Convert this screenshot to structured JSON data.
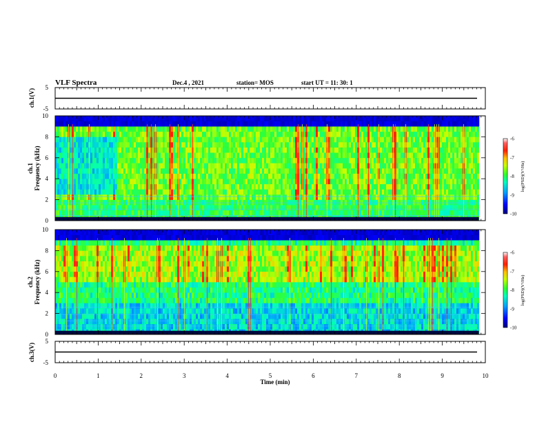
{
  "header": {
    "title": "VLF Spectra",
    "date": "Dec.4 , 2021",
    "station": "station= MOS",
    "start_ut": "start UT =  11: 30: 1"
  },
  "chart_data": [
    {
      "id": "ch1-waveform",
      "type": "line",
      "ylabel": "ch.1(V)",
      "yticks": [
        "5",
        "-5"
      ],
      "ylim": [
        -5,
        5
      ],
      "xlim": [
        0,
        10
      ],
      "trace_level": 0
    },
    {
      "id": "ch1-spectrogram",
      "type": "heatmap",
      "ylabel_top": "ch.1",
      "ylabel": "Frequency (kHz)",
      "yticks": [
        "0",
        "2",
        "4",
        "6",
        "8",
        "10"
      ],
      "ylim": [
        0,
        10
      ],
      "xlim": [
        0,
        10
      ],
      "data_end_min": 9.85,
      "colorbar": {
        "label": "log(PSD)(V²/Hz)",
        "ticks": [
          "-6",
          "-7",
          "-8",
          "-9",
          "-10"
        ],
        "range": [
          -10,
          -6
        ]
      }
    },
    {
      "id": "ch2-spectrogram",
      "type": "heatmap",
      "ylabel_top": "ch.2",
      "ylabel": "Frequency (kHz)",
      "yticks": [
        "0",
        "2",
        "4",
        "6",
        "8",
        "10"
      ],
      "ylim": [
        0,
        10
      ],
      "xlim": [
        0,
        10
      ],
      "data_end_min": 9.85,
      "colorbar": {
        "label": "log(PSD)(V²/Hz)",
        "ticks": [
          "-6",
          "-7",
          "-8",
          "-9",
          "-10"
        ],
        "range": [
          -10,
          -6
        ]
      }
    },
    {
      "id": "ch3-waveform",
      "type": "line",
      "ylabel": "ch.3(V)",
      "yticks": [
        "5",
        "-5"
      ],
      "ylim": [
        -5,
        5
      ],
      "xlim": [
        0,
        10
      ],
      "trace_level": 0
    }
  ],
  "xaxis": {
    "label": "Time (min)",
    "ticks": [
      "0",
      "1",
      "2",
      "3",
      "4",
      "5",
      "6",
      "7",
      "8",
      "9",
      "10"
    ],
    "range": [
      0,
      10
    ]
  },
  "colors": {
    "colormap": [
      "#000080",
      "#0000ff",
      "#00a0ff",
      "#00ffc0",
      "#30ff30",
      "#c8ff00",
      "#ffc000",
      "#ff2000",
      "#ff3030",
      "#ffffff"
    ]
  }
}
